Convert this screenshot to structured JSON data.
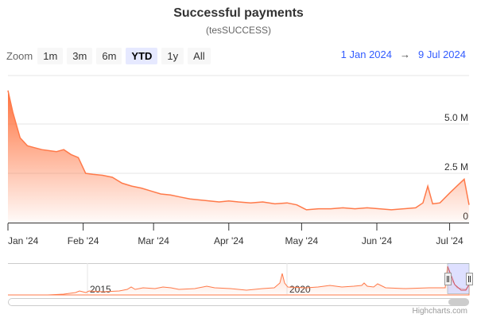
{
  "title": "Successful payments",
  "subtitle": "(tesSUCCESS)",
  "range_selector": {
    "zoom_label": "Zoom",
    "buttons": [
      {
        "label": "1m",
        "selected": false
      },
      {
        "label": "3m",
        "selected": false
      },
      {
        "label": "6m",
        "selected": false
      },
      {
        "label": "YTD",
        "selected": true
      },
      {
        "label": "1y",
        "selected": false
      },
      {
        "label": "All",
        "selected": false
      }
    ],
    "from": "1 Jan 2024",
    "arrow": "→",
    "to": "9 Jul 2024"
  },
  "credits": "Highcharts.com",
  "colors": {
    "series": "#ff7a4a",
    "grid": "#e6e6e6",
    "date_text": "#335cff",
    "navigator_mask": "#c8ccff"
  },
  "chart_data": {
    "type": "area",
    "title": "Successful payments",
    "subtitle": "(tesSUCCESS)",
    "xlabel": "",
    "ylabel": "",
    "ylim": [
      0,
      7000000
    ],
    "y_ticks": [
      "0",
      "2.5 M",
      "5.0 M"
    ],
    "x_ticks": [
      "Jan '24",
      "Feb '24",
      "Mar '24",
      "Apr '24",
      "May '24",
      "Jun '24",
      "Jul '24"
    ],
    "grid": true,
    "legend": "none",
    "series": [
      {
        "name": "Successful payments",
        "x": [
          "2024-01-01",
          "2024-01-03",
          "2024-01-06",
          "2024-01-09",
          "2024-01-12",
          "2024-01-15",
          "2024-01-18",
          "2024-01-21",
          "2024-01-24",
          "2024-01-27",
          "2024-01-30",
          "2024-02-02",
          "2024-02-05",
          "2024-02-09",
          "2024-02-13",
          "2024-02-17",
          "2024-02-21",
          "2024-02-25",
          "2024-02-29",
          "2024-03-04",
          "2024-03-08",
          "2024-03-12",
          "2024-03-16",
          "2024-03-20",
          "2024-03-24",
          "2024-03-28",
          "2024-04-01",
          "2024-04-05",
          "2024-04-10",
          "2024-04-15",
          "2024-04-20",
          "2024-04-25",
          "2024-04-29",
          "2024-05-03",
          "2024-05-08",
          "2024-05-13",
          "2024-05-18",
          "2024-05-23",
          "2024-05-28",
          "2024-06-02",
          "2024-06-07",
          "2024-06-12",
          "2024-06-17",
          "2024-06-20",
          "2024-06-22",
          "2024-06-24",
          "2024-06-27",
          "2024-07-01",
          "2024-07-04",
          "2024-07-07",
          "2024-07-09"
        ],
        "values": [
          6700000,
          5600000,
          4300000,
          3900000,
          3800000,
          3700000,
          3650000,
          3600000,
          3700000,
          3450000,
          3300000,
          2500000,
          2450000,
          2400000,
          2300000,
          2000000,
          1850000,
          1750000,
          1600000,
          1450000,
          1400000,
          1300000,
          1200000,
          1150000,
          1100000,
          1050000,
          1100000,
          1050000,
          1000000,
          1050000,
          950000,
          1000000,
          900000,
          650000,
          700000,
          700000,
          750000,
          700000,
          750000,
          700000,
          650000,
          700000,
          750000,
          1000000,
          1850000,
          950000,
          1000000,
          1500000,
          1850000,
          2200000,
          900000
        ]
      }
    ],
    "navigator": {
      "x_labels": [
        "2015",
        "2020"
      ],
      "selected_range": [
        "2024-01-01",
        "2024-07-09"
      ]
    }
  }
}
